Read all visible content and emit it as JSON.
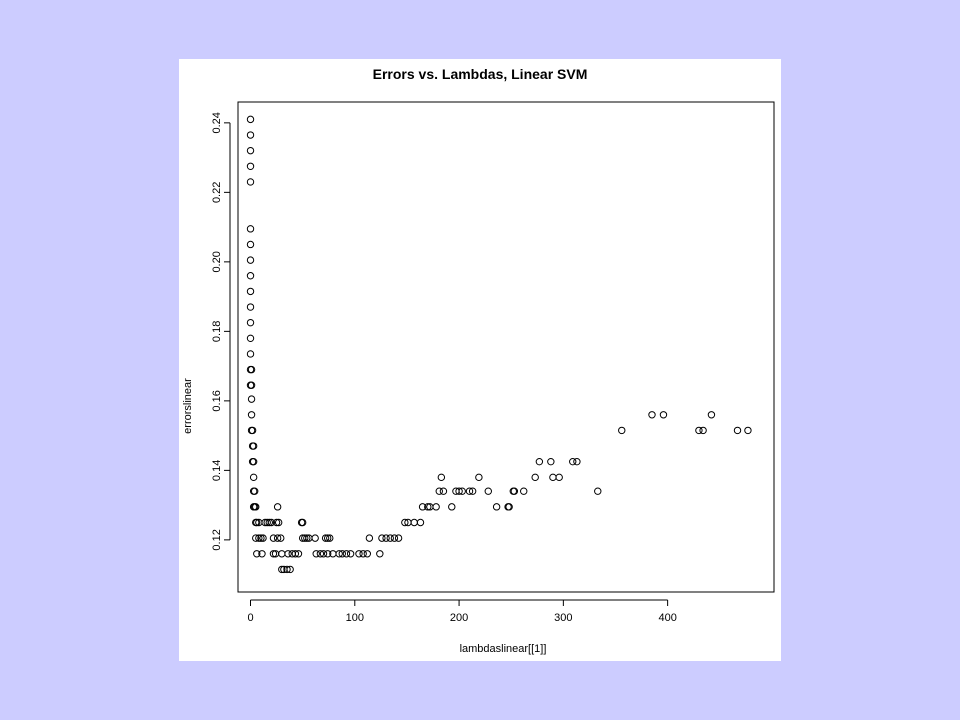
{
  "chart_data": {
    "type": "scatter",
    "title": "Errors vs. Lambdas, Linear SVM",
    "xlabel": "lambdaslinear[[1]]",
    "ylabel": "errorslinear",
    "xlim": [
      -12,
      502
    ],
    "ylim": [
      0.105,
      0.246
    ],
    "xticks": [
      0,
      100,
      200,
      300,
      400
    ],
    "yticks": [
      0.12,
      0.14,
      0.16,
      0.18,
      0.2,
      0.22,
      0.24
    ],
    "ytick_labels": [
      "0.12",
      "0.14",
      "0.16",
      "0.18",
      "0.20",
      "0.22",
      "0.24"
    ],
    "grid": false,
    "legend": "none",
    "marker": "open-circle",
    "colors": {
      "page_background": "#ccccff",
      "plot_background": "#ffffff",
      "ink": "#000000"
    },
    "points": [
      [
        0,
        0.241
      ],
      [
        0,
        0.2365
      ],
      [
        0,
        0.232
      ],
      [
        0,
        0.2275
      ],
      [
        0,
        0.223
      ],
      [
        0,
        0.2095
      ],
      [
        0,
        0.205
      ],
      [
        0,
        0.2005
      ],
      [
        0,
        0.196
      ],
      [
        0,
        0.1915
      ],
      [
        0,
        0.187
      ],
      [
        0,
        0.1825
      ],
      [
        0,
        0.178
      ],
      [
        0,
        0.1735
      ],
      [
        0,
        0.169
      ],
      [
        1,
        0.169
      ],
      [
        0,
        0.1645
      ],
      [
        1,
        0.1645
      ],
      [
        1,
        0.1605
      ],
      [
        1,
        0.156
      ],
      [
        1,
        0.1515
      ],
      [
        2,
        0.1515
      ],
      [
        2,
        0.147
      ],
      [
        3,
        0.147
      ],
      [
        2,
        0.1425
      ],
      [
        3,
        0.1425
      ],
      [
        3,
        0.138
      ],
      [
        3,
        0.134
      ],
      [
        4,
        0.134
      ],
      [
        3,
        0.1295
      ],
      [
        4,
        0.1295
      ],
      [
        5,
        0.1295
      ],
      [
        5,
        0.125
      ],
      [
        6,
        0.125
      ],
      [
        8,
        0.125
      ],
      [
        14,
        0.125
      ],
      [
        16,
        0.125
      ],
      [
        18,
        0.125
      ],
      [
        20,
        0.125
      ],
      [
        25,
        0.125
      ],
      [
        27,
        0.125
      ],
      [
        5,
        0.1205
      ],
      [
        8,
        0.1205
      ],
      [
        10,
        0.1205
      ],
      [
        12,
        0.1205
      ],
      [
        22,
        0.1205
      ],
      [
        26,
        0.1205
      ],
      [
        29,
        0.1205
      ],
      [
        6,
        0.116
      ],
      [
        11,
        0.116
      ],
      [
        22,
        0.116
      ],
      [
        24,
        0.116
      ],
      [
        30,
        0.116
      ],
      [
        36,
        0.116
      ],
      [
        40,
        0.116
      ],
      [
        43,
        0.116
      ],
      [
        46,
        0.116
      ],
      [
        26,
        0.1295
      ],
      [
        30,
        0.1115
      ],
      [
        32,
        0.1115
      ],
      [
        35,
        0.1115
      ],
      [
        38,
        0.1115
      ],
      [
        49,
        0.125
      ],
      [
        50,
        0.125
      ],
      [
        50,
        0.1205
      ],
      [
        52,
        0.1205
      ],
      [
        54,
        0.1205
      ],
      [
        56,
        0.1205
      ],
      [
        62,
        0.1205
      ],
      [
        72,
        0.1205
      ],
      [
        74,
        0.1205
      ],
      [
        76,
        0.1205
      ],
      [
        63,
        0.116
      ],
      [
        67,
        0.116
      ],
      [
        70,
        0.116
      ],
      [
        74,
        0.116
      ],
      [
        79,
        0.116
      ],
      [
        85,
        0.116
      ],
      [
        88,
        0.116
      ],
      [
        92,
        0.116
      ],
      [
        96,
        0.116
      ],
      [
        104,
        0.116
      ],
      [
        108,
        0.116
      ],
      [
        112,
        0.116
      ],
      [
        124,
        0.116
      ],
      [
        114,
        0.1205
      ],
      [
        126,
        0.1205
      ],
      [
        130,
        0.1205
      ],
      [
        134,
        0.1205
      ],
      [
        138,
        0.1205
      ],
      [
        142,
        0.1205
      ],
      [
        148,
        0.125
      ],
      [
        151,
        0.125
      ],
      [
        157,
        0.125
      ],
      [
        163,
        0.125
      ],
      [
        165,
        0.1295
      ],
      [
        170,
        0.1295
      ],
      [
        172,
        0.1295
      ],
      [
        178,
        0.1295
      ],
      [
        193,
        0.1295
      ],
      [
        236,
        0.1295
      ],
      [
        247,
        0.1295
      ],
      [
        248,
        0.1295
      ],
      [
        181,
        0.134
      ],
      [
        185,
        0.134
      ],
      [
        197,
        0.134
      ],
      [
        200,
        0.134
      ],
      [
        203,
        0.134
      ],
      [
        210,
        0.134
      ],
      [
        213,
        0.134
      ],
      [
        228,
        0.134
      ],
      [
        252,
        0.134
      ],
      [
        253,
        0.134
      ],
      [
        262,
        0.134
      ],
      [
        333,
        0.134
      ],
      [
        183,
        0.138
      ],
      [
        219,
        0.138
      ],
      [
        273,
        0.138
      ],
      [
        290,
        0.138
      ],
      [
        296,
        0.138
      ],
      [
        277,
        0.1425
      ],
      [
        288,
        0.1425
      ],
      [
        309,
        0.1425
      ],
      [
        313,
        0.1425
      ],
      [
        356,
        0.1515
      ],
      [
        430,
        0.1515
      ],
      [
        434,
        0.1515
      ],
      [
        467,
        0.1515
      ],
      [
        477,
        0.1515
      ],
      [
        385,
        0.156
      ],
      [
        396,
        0.156
      ],
      [
        442,
        0.156
      ]
    ]
  }
}
